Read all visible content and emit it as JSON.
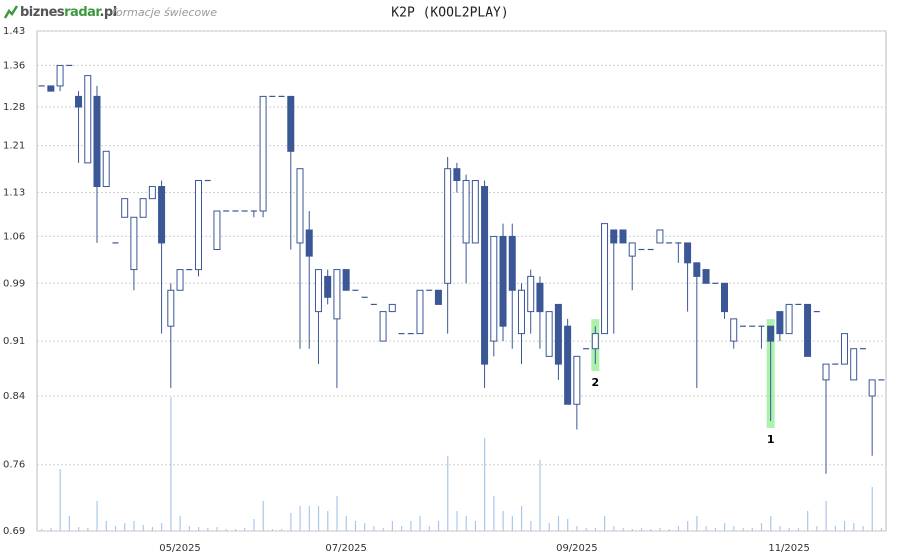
{
  "brand": {
    "part1": "biznes",
    "part2": "radar",
    "part3": ".pl",
    "section": "formacje świecowe"
  },
  "chart_data": {
    "type": "candlestick",
    "title": "K2P (KOOL2PLAY)",
    "log_scale": true,
    "grid": true,
    "up_color": "#ffffff",
    "down_color": "#3b5796",
    "line_color": "#3b5796",
    "volume_color": "#aac8ea",
    "highlight_color": "#90ee90",
    "ylim": [
      0.69,
      1.43
    ],
    "yticks": [
      0.69,
      0.76,
      0.84,
      0.91,
      0.99,
      1.06,
      1.13,
      1.21,
      1.28,
      1.36,
      1.43
    ],
    "categories": [
      null,
      null,
      null,
      null,
      null,
      null,
      null,
      null,
      null,
      null,
      null,
      null,
      null,
      null,
      null,
      "05/2025",
      null,
      null,
      null,
      null,
      null,
      null,
      null,
      null,
      null,
      null,
      null,
      null,
      null,
      null,
      null,
      null,
      null,
      "07/2025",
      null,
      null,
      null,
      null,
      null,
      null,
      null,
      null,
      null,
      null,
      null,
      null,
      null,
      null,
      null,
      null,
      null,
      null,
      null,
      null,
      null,
      null,
      null,
      null,
      "09/2025",
      null,
      null,
      null,
      null,
      null,
      null,
      null,
      null,
      null,
      null,
      null,
      null,
      null,
      null,
      null,
      null,
      null,
      null,
      null,
      null,
      null,
      null,
      "11/2025",
      null,
      null,
      null,
      null,
      null,
      null,
      null,
      null,
      null,
      null
    ],
    "markers": [
      null,
      null,
      null,
      null,
      null,
      null,
      null,
      null,
      null,
      null,
      null,
      null,
      null,
      null,
      null,
      null,
      null,
      null,
      null,
      null,
      null,
      null,
      null,
      null,
      null,
      null,
      null,
      null,
      null,
      null,
      null,
      null,
      null,
      null,
      null,
      null,
      null,
      null,
      null,
      null,
      null,
      null,
      null,
      null,
      null,
      null,
      null,
      null,
      null,
      null,
      null,
      null,
      null,
      null,
      null,
      null,
      null,
      null,
      null,
      null,
      "2",
      null,
      null,
      null,
      null,
      null,
      null,
      null,
      null,
      null,
      null,
      null,
      null,
      null,
      null,
      null,
      null,
      null,
      null,
      "1",
      null,
      null,
      null,
      null,
      null,
      null,
      null,
      null,
      null,
      null,
      null,
      null
    ],
    "open": [
      1.32,
      1.32,
      1.32,
      1.36,
      1.3,
      1.18,
      1.3,
      1.14,
      1.05,
      1.09,
      1.01,
      1.09,
      1.12,
      1.14,
      0.93,
      0.98,
      1.01,
      1.01,
      1.15,
      1.04,
      1.1,
      1.1,
      1.1,
      1.1,
      1.1,
      1.3,
      1.3,
      1.3,
      1.05,
      1.07,
      0.95,
      1.0,
      0.94,
      1.01,
      0.98,
      0.97,
      0.96,
      0.91,
      0.95,
      0.92,
      0.92,
      0.92,
      0.98,
      0.98,
      0.99,
      1.17,
      1.05,
      1.05,
      1.14,
      0.91,
      1.06,
      1.06,
      0.92,
      0.95,
      0.99,
      0.89,
      0.96,
      0.93,
      0.83,
      0.9,
      0.9,
      0.92,
      1.07,
      1.07,
      1.03,
      1.04,
      1.04,
      1.05,
      1.05,
      1.05,
      1.05,
      1.02,
      1.01,
      0.99,
      0.99,
      0.91,
      0.93,
      0.93,
      0.93,
      0.93,
      0.95,
      0.92,
      0.96,
      0.96,
      0.95,
      0.86,
      0.88,
      0.88,
      0.86,
      0.9,
      0.84,
      0.86
    ],
    "high": [
      1.32,
      1.32,
      1.36,
      1.36,
      1.31,
      1.34,
      1.32,
      1.2,
      1.05,
      1.12,
      1.09,
      1.12,
      1.14,
      1.15,
      0.99,
      1.01,
      1.01,
      1.15,
      1.15,
      1.1,
      1.1,
      1.1,
      1.1,
      1.1,
      1.3,
      1.3,
      1.3,
      1.3,
      1.17,
      1.1,
      1.01,
      1.01,
      1.01,
      1.01,
      0.98,
      0.97,
      0.96,
      0.95,
      0.96,
      0.92,
      0.92,
      0.98,
      0.98,
      0.98,
      1.19,
      1.18,
      1.16,
      1.15,
      1.15,
      1.06,
      1.08,
      1.08,
      0.99,
      1.01,
      1.0,
      0.95,
      0.96,
      0.94,
      0.89,
      0.9,
      0.93,
      1.08,
      1.07,
      1.07,
      1.05,
      1.04,
      1.04,
      1.07,
      1.05,
      1.05,
      1.05,
      1.02,
      1.01,
      0.99,
      0.99,
      0.94,
      0.93,
      0.93,
      0.93,
      0.93,
      0.95,
      0.96,
      0.96,
      0.96,
      0.95,
      0.88,
      0.88,
      0.92,
      0.9,
      0.9,
      0.86,
      0.86
    ],
    "low": [
      1.32,
      1.31,
      1.31,
      1.36,
      1.18,
      1.18,
      1.05,
      1.14,
      1.05,
      1.09,
      0.98,
      1.09,
      1.12,
      0.92,
      0.85,
      0.98,
      1.01,
      1.0,
      1.15,
      1.04,
      1.1,
      1.1,
      1.1,
      1.09,
      1.09,
      1.3,
      1.3,
      1.04,
      0.9,
      0.9,
      0.88,
      0.96,
      0.85,
      0.98,
      0.98,
      0.97,
      0.96,
      0.91,
      0.95,
      0.92,
      0.92,
      0.92,
      0.98,
      0.96,
      0.92,
      1.13,
      0.99,
      1.05,
      0.85,
      0.89,
      0.91,
      0.9,
      0.88,
      0.92,
      0.9,
      0.89,
      0.86,
      0.83,
      0.8,
      0.9,
      0.88,
      0.92,
      0.92,
      1.05,
      0.98,
      1.04,
      1.04,
      1.05,
      1.05,
      1.02,
      0.95,
      0.85,
      0.99,
      0.99,
      0.94,
      0.9,
      0.93,
      0.93,
      0.9,
      0.81,
      0.91,
      0.92,
      0.96,
      0.89,
      0.95,
      0.75,
      0.88,
      0.88,
      0.86,
      0.9,
      0.77,
      0.86
    ],
    "close": [
      1.32,
      1.31,
      1.36,
      1.36,
      1.28,
      1.34,
      1.14,
      1.2,
      1.05,
      1.12,
      1.09,
      1.12,
      1.14,
      1.05,
      0.98,
      1.01,
      1.01,
      1.15,
      1.15,
      1.1,
      1.1,
      1.1,
      1.1,
      1.1,
      1.3,
      1.3,
      1.3,
      1.2,
      1.17,
      1.03,
      1.01,
      0.97,
      1.01,
      0.98,
      0.98,
      0.97,
      0.96,
      0.95,
      0.96,
      0.92,
      0.92,
      0.98,
      0.98,
      0.96,
      1.17,
      1.15,
      1.15,
      1.15,
      0.88,
      1.06,
      0.93,
      0.98,
      0.98,
      1.0,
      0.95,
      0.95,
      0.88,
      0.83,
      0.89,
      0.9,
      0.92,
      1.08,
      1.05,
      1.05,
      1.05,
      1.04,
      1.04,
      1.07,
      1.05,
      1.05,
      1.02,
      1.0,
      0.99,
      0.99,
      0.95,
      0.94,
      0.93,
      0.93,
      0.93,
      0.91,
      0.92,
      0.96,
      0.96,
      0.89,
      0.95,
      0.88,
      0.88,
      0.92,
      0.9,
      0.9,
      0.86,
      0.86
    ],
    "volume": [
      2,
      3,
      62,
      15,
      4,
      3,
      30,
      10,
      5,
      8,
      10,
      6,
      4,
      8,
      134,
      15,
      5,
      4,
      3,
      4,
      2,
      2,
      3,
      12,
      30,
      2,
      2,
      18,
      25,
      25,
      25,
      20,
      35,
      15,
      10,
      8,
      5,
      3,
      10,
      5,
      10,
      15,
      5,
      10,
      75,
      20,
      15,
      10,
      93,
      35,
      20,
      15,
      25,
      10,
      71,
      8,
      15,
      12,
      5,
      3,
      3,
      15,
      5,
      3,
      2,
      3,
      2,
      3,
      2,
      5,
      10,
      15,
      5,
      3,
      8,
      5,
      3,
      3,
      8,
      15,
      5,
      3,
      3,
      20,
      5,
      30,
      5,
      10,
      8,
      5,
      44,
      3
    ]
  }
}
